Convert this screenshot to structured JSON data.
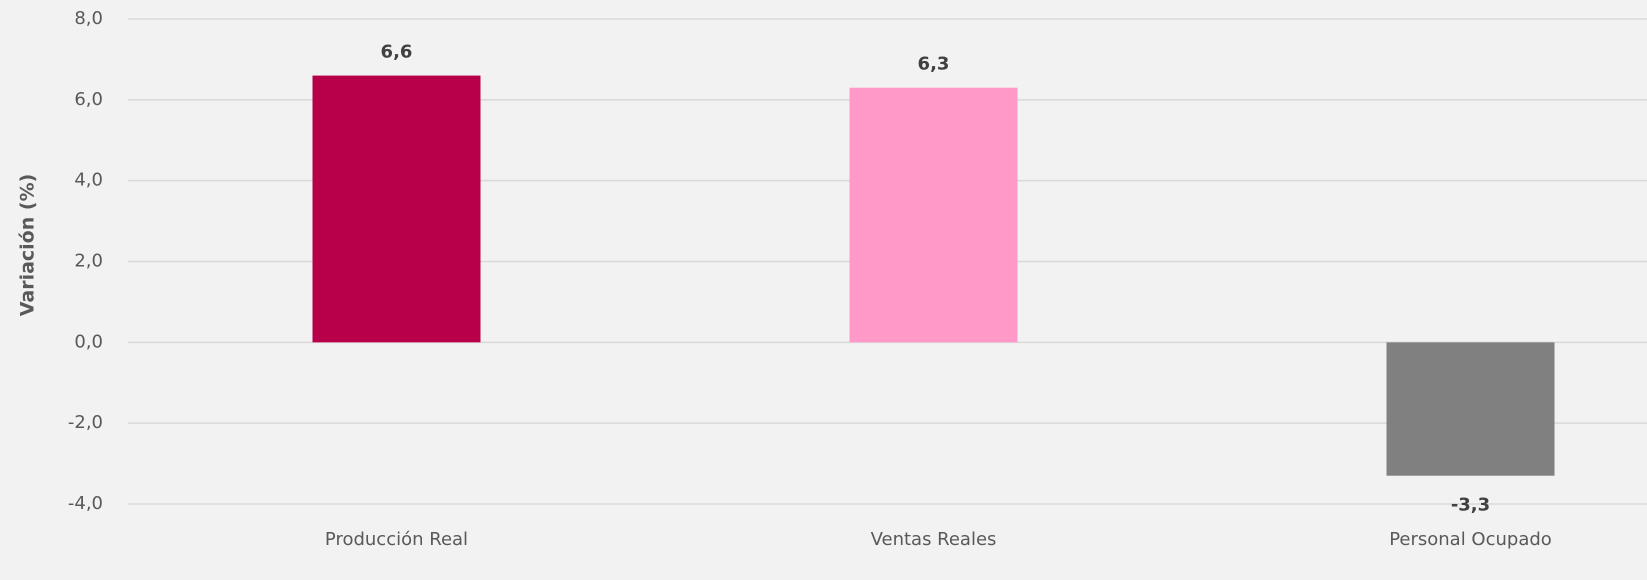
{
  "chart_data": {
    "type": "bar",
    "y_label": "Variación (%)",
    "categories": [
      "Producción Real",
      "Ventas Reales",
      "Personal Ocupado"
    ],
    "values": [
      6.6,
      6.3,
      -3.3
    ],
    "value_labels": [
      "6,6",
      "6,3",
      "-3,3"
    ],
    "colors": [
      "#b8004a",
      "#ff99c8",
      "#808080"
    ],
    "ylim": [
      -4,
      8
    ],
    "yticks": [
      {
        "value": -4,
        "label": "-4,0"
      },
      {
        "value": -2,
        "label": "-2,0"
      },
      {
        "value": 0,
        "label": "0,0"
      },
      {
        "value": 2,
        "label": "2,0"
      },
      {
        "value": 4,
        "label": "4,0"
      },
      {
        "value": 6,
        "label": "6,0"
      },
      {
        "value": 8,
        "label": "8,0"
      }
    ],
    "grid": true
  }
}
